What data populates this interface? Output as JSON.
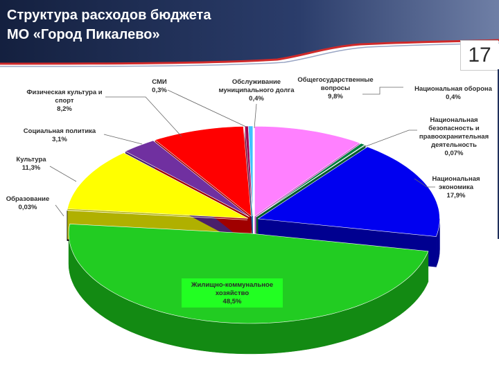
{
  "slide": {
    "title_line1": "Структура расходов бюджета",
    "title_line2": "МО «Город Пикалево»",
    "page_number": "17"
  },
  "colors": {
    "header_dark": "#1b2a4e",
    "header_accent": "#c0392b"
  },
  "chart_data": {
    "type": "pie",
    "title": "",
    "style": "3d exploded pie",
    "slices": [
      {
        "label": "Общегосударственные вопросы",
        "value_text": "9,8%",
        "value": 9.8,
        "color": "#ff80ff",
        "side": "#c050c0"
      },
      {
        "label": "Национальная оборона",
        "value_text": "0,4%",
        "value": 0.4,
        "color": "#008040",
        "side": "#004a25"
      },
      {
        "label": "Национальная безопасность и правоохранительная деятельность",
        "value_text": "0,07%",
        "value": 0.07,
        "color": "#00a050",
        "side": "#005a2d"
      },
      {
        "label": "Национальная экономика",
        "value_text": "17,9%",
        "value": 17.9,
        "color": "#0000f0",
        "side": "#000090"
      },
      {
        "label": "Жилищно-коммунальное хозяйство",
        "value_text": "48,5%",
        "value": 48.5,
        "color": "#22cc22",
        "side": "#138a13"
      },
      {
        "label": "Образование",
        "value_text": "0,03%",
        "value": 0.03,
        "color": "#1a1a1a",
        "side": "#000000"
      },
      {
        "label": "Культура",
        "value_text": "11,3%",
        "value": 11.3,
        "color": "#ffff00",
        "side": "#b0b000"
      },
      {
        "label": "Социальная политика",
        "value_text": "3,1%",
        "value": 3.1,
        "color": "#7030a0",
        "side": "#4a1f6b"
      },
      {
        "label": "Физическая культура и спорт",
        "value_text": "8,2%",
        "value": 8.2,
        "color": "#ff0000",
        "side": "#a00000"
      },
      {
        "label": "СМИ",
        "value_text": "0,3%",
        "value": 0.3,
        "color": "#a00050",
        "side": "#600030"
      },
      {
        "label": "Обслуживание муниципального долга",
        "value_text": "0,4%",
        "value": 0.4,
        "color": "#40c0ff",
        "side": "#2080b0"
      }
    ]
  }
}
